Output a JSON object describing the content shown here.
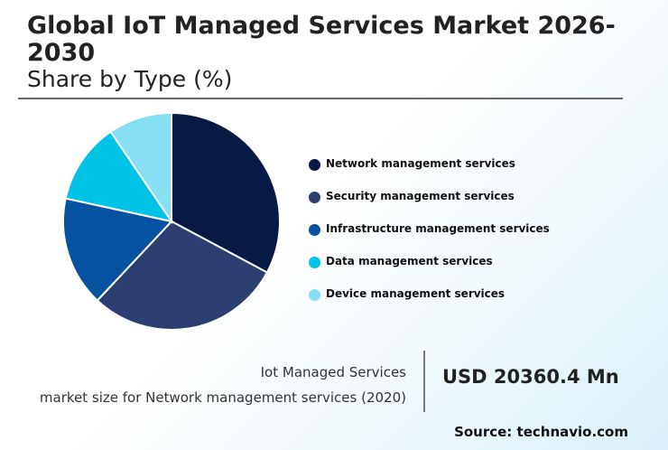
{
  "header": {
    "title": "Global IoT Managed Services Market 2026-2030",
    "subtitle": "Share by Type (%)"
  },
  "chart_data": {
    "type": "pie",
    "categories": [
      "Network management services",
      "Security management services",
      "Infrastructure management services",
      "Data management services",
      "Device management services"
    ],
    "values": [
      32.8,
      29.2,
      16.4,
      12.1,
      9.5
    ],
    "colors": [
      "#061a44",
      "#2b3f70",
      "#0452a0",
      "#00c3e6",
      "#87dff4"
    ],
    "legend_position": "right"
  },
  "info": {
    "label_line1": "Iot Managed Services",
    "label_line2": "market size for Network management services (2020)",
    "value": "USD 20360.4 Mn"
  },
  "source": "Source: technavio.com"
}
